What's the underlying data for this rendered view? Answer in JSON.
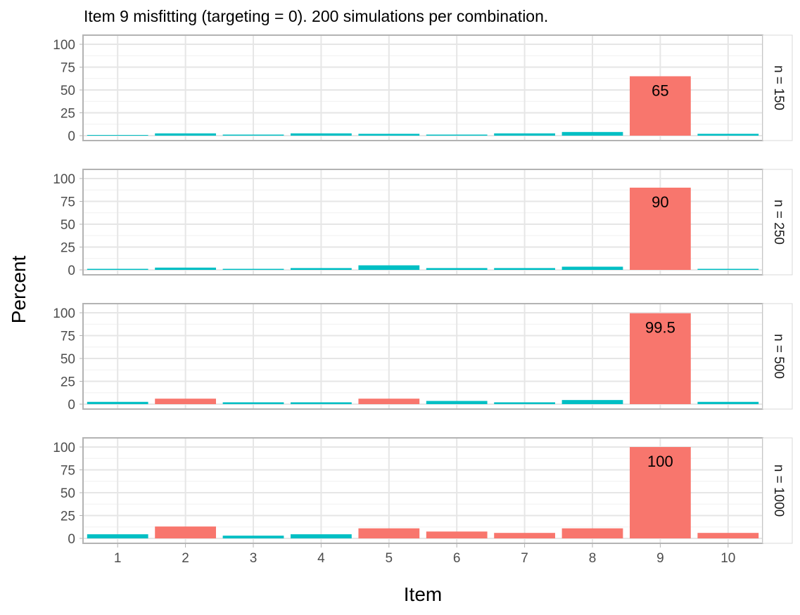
{
  "chart_data": {
    "type": "bar",
    "title": "Item 9 misfitting (targeting = 0). 200 simulations per combination.",
    "xlabel": "Item",
    "ylabel": "Percent",
    "categories": [
      "1",
      "2",
      "3",
      "4",
      "5",
      "6",
      "7",
      "8",
      "9",
      "10"
    ],
    "ylim": [
      0,
      100
    ],
    "yticks": [
      0,
      25,
      50,
      75,
      100
    ],
    "grid": true,
    "facets": [
      {
        "label": "n = 150",
        "values": [
          0,
          2.5,
          1,
          2.5,
          2,
          1,
          2.5,
          4,
          65,
          2
        ],
        "highlight": [
          false,
          false,
          false,
          false,
          false,
          false,
          false,
          false,
          true,
          false
        ],
        "annotation": {
          "category": "9",
          "text": "65"
        }
      },
      {
        "label": "n = 250",
        "values": [
          1,
          2.5,
          1,
          2,
          5,
          2,
          2,
          3.5,
          90,
          1
        ],
        "highlight": [
          false,
          false,
          false,
          false,
          false,
          false,
          false,
          false,
          true,
          false
        ],
        "annotation": {
          "category": "9",
          "text": "90"
        }
      },
      {
        "label": "n = 500",
        "values": [
          2.5,
          6,
          2,
          2,
          6,
          3.5,
          2,
          4.5,
          99.5,
          2.5
        ],
        "highlight": [
          false,
          true,
          false,
          false,
          true,
          false,
          false,
          false,
          true,
          false
        ],
        "annotation": {
          "category": "9",
          "text": "99.5"
        }
      },
      {
        "label": "n = 1000",
        "values": [
          4.5,
          13,
          3,
          4.5,
          11,
          7.5,
          6,
          11,
          100,
          6
        ],
        "highlight": [
          false,
          true,
          false,
          false,
          true,
          true,
          true,
          true,
          true,
          true
        ],
        "annotation": {
          "category": "9",
          "text": "100"
        }
      }
    ],
    "colors": {
      "highlight": "#F8766D",
      "normal": "#00BFC4",
      "grid_major": "#e6e6e6",
      "grid_minor": "#f0f0f0",
      "panel_border": "#b3b3b3"
    }
  }
}
